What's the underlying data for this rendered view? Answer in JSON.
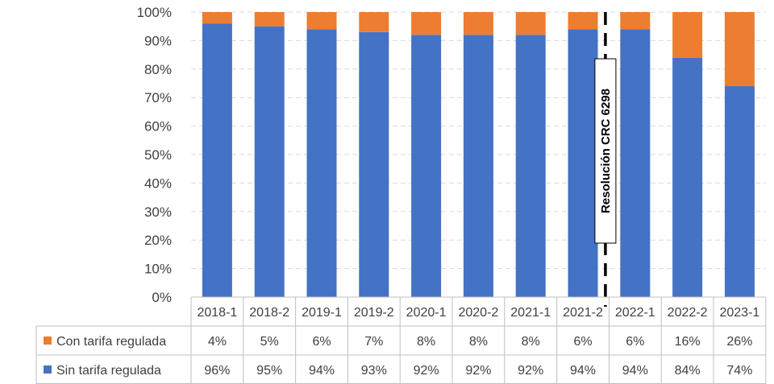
{
  "chart_data": {
    "type": "bar",
    "stacked": true,
    "categories": [
      "2018-1",
      "2018-2",
      "2019-1",
      "2019-2",
      "2020-1",
      "2020-2",
      "2021-1",
      "2021-2",
      "2022-1",
      "2022-2",
      "2023-1"
    ],
    "series": [
      {
        "name": "Sin tarifa regulada",
        "color": "#4472C4",
        "values": [
          96,
          95,
          94,
          93,
          92,
          92,
          92,
          94,
          94,
          84,
          74
        ],
        "labels": [
          "96%",
          "95%",
          "94%",
          "93%",
          "92%",
          "92%",
          "92%",
          "94%",
          "94%",
          "84%",
          "74%"
        ]
      },
      {
        "name": "Con tarifa regulada",
        "color": "#ED7D31",
        "values": [
          4,
          5,
          6,
          7,
          8,
          8,
          8,
          6,
          6,
          16,
          26
        ],
        "labels": [
          "4%",
          "5%",
          "6%",
          "7%",
          "8%",
          "8%",
          "8%",
          "6%",
          "6%",
          "16%",
          "26%"
        ]
      }
    ],
    "yticks": [
      "0%",
      "10%",
      "20%",
      "30%",
      "40%",
      "50%",
      "60%",
      "70%",
      "80%",
      "90%",
      "100%"
    ],
    "ylim": [
      0,
      100
    ],
    "grid": "horizontal-dashed",
    "legend": "data-table",
    "annotation": {
      "text": "Resolución CRC 6298",
      "between": [
        "2021-2",
        "2022-1"
      ],
      "style": "vertical-dashed-line"
    }
  }
}
